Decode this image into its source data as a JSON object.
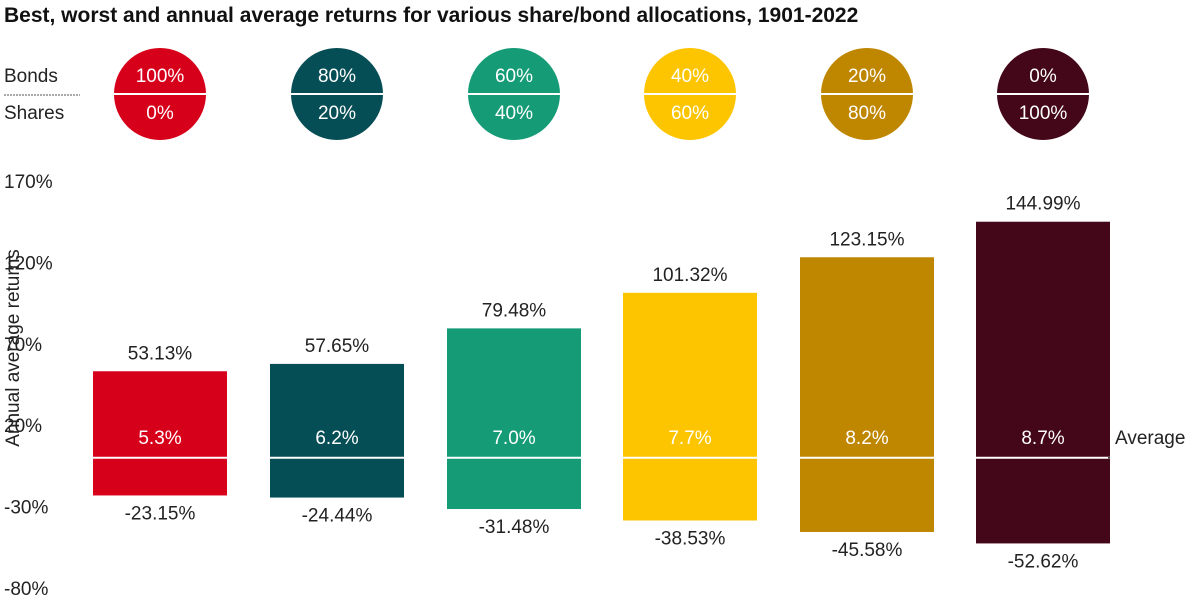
{
  "chart_data": {
    "type": "bar",
    "title": "Best, worst and annual average returns for various share/bond allocations, 1901-2022",
    "ylabel": "Annual average returns",
    "ylim": [
      -80,
      170
    ],
    "yticks": [
      "170%",
      "120%",
      "70%",
      "20%",
      "-30%",
      "-80%"
    ],
    "legend_row_labels": {
      "bonds": "Bonds",
      "shares": "Shares"
    },
    "average_label": "Average",
    "categories": [
      {
        "bonds": "100%",
        "shares": "0%",
        "color": "#d7001b"
      },
      {
        "bonds": "80%",
        "shares": "20%",
        "color": "#064e55"
      },
      {
        "bonds": "60%",
        "shares": "40%",
        "color": "#159b76"
      },
      {
        "bonds": "40%",
        "shares": "60%",
        "color": "#fcc500"
      },
      {
        "bonds": "20%",
        "shares": "80%",
        "color": "#bf8600"
      },
      {
        "bonds": "0%",
        "shares": "100%",
        "color": "#440719"
      }
    ],
    "series": [
      {
        "name": "Best",
        "values": [
          53.13,
          57.65,
          79.48,
          101.32,
          123.15,
          144.99
        ],
        "labels": [
          "53.13%",
          "57.65%",
          "79.48%",
          "101.32%",
          "123.15%",
          "144.99%"
        ]
      },
      {
        "name": "Worst",
        "values": [
          -23.15,
          -24.44,
          -31.48,
          -38.53,
          -45.58,
          -52.62
        ],
        "labels": [
          "-23.15%",
          "-24.44%",
          "-31.48%",
          "-38.53%",
          "-45.58%",
          "-52.62%"
        ]
      },
      {
        "name": "Average",
        "values": [
          5.3,
          6.2,
          7.0,
          7.7,
          8.2,
          8.7
        ],
        "labels": [
          "5.3%",
          "6.2%",
          "7.0%",
          "7.7%",
          "8.2%",
          "8.7%"
        ]
      }
    ]
  }
}
